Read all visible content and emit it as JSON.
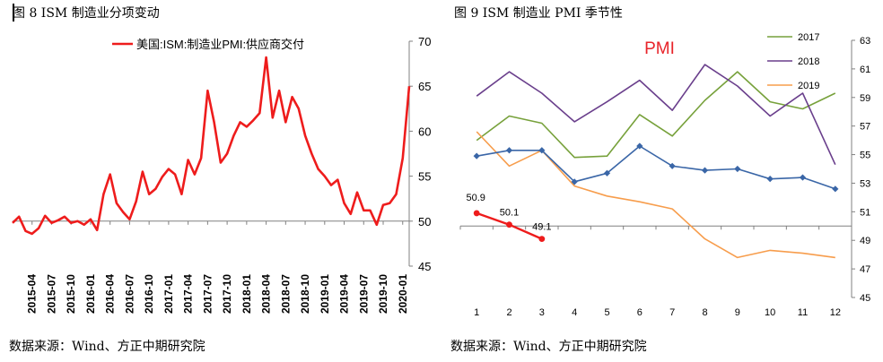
{
  "left": {
    "title": "图 8  ISM 制造业分项变动",
    "source": "数据来源：Wind、方正中期研究院"
  },
  "right": {
    "title": "图 9  ISM 制造业 PMI 季节性",
    "source": "数据来源：Wind、方正中期研究院"
  },
  "chart_data": [
    {
      "type": "line",
      "title": "",
      "legend": [
        "美国:ISM:制造业PMI:供应商交付"
      ],
      "legend_position": "top",
      "colors": [
        "#ee1c1c"
      ],
      "y_axis_side": "right",
      "ylim": [
        45,
        70
      ],
      "y_ticks": [
        45,
        50,
        55,
        60,
        65,
        70
      ],
      "x_tick_labels": [
        "2015-04",
        "2015-07",
        "2015-10",
        "2016-01",
        "2016-04",
        "2016-07",
        "2016-10",
        "2017-01",
        "2017-04",
        "2017-07",
        "2017-10",
        "2018-01",
        "2018-04",
        "2018-07",
        "2018-10",
        "2019-01",
        "2019-04",
        "2019-07",
        "2019-10",
        "2020-01"
      ],
      "grid": false,
      "series": [
        {
          "name": "美国:ISM:制造业PMI:供应商交付",
          "points": [
            [
              "2015-01",
              49.8
            ],
            [
              "2015-02",
              50.5
            ],
            [
              "2015-03",
              48.9
            ],
            [
              "2015-04",
              48.6
            ],
            [
              "2015-05",
              49.2
            ],
            [
              "2015-06",
              50.6
            ],
            [
              "2015-07",
              49.8
            ],
            [
              "2015-08",
              50.1
            ],
            [
              "2015-09",
              50.5
            ],
            [
              "2015-10",
              49.8
            ],
            [
              "2015-11",
              50.0
            ],
            [
              "2015-12",
              49.6
            ],
            [
              "2016-01",
              50.2
            ],
            [
              "2016-02",
              49.0
            ],
            [
              "2016-03",
              53.0
            ],
            [
              "2016-04",
              55.2
            ],
            [
              "2016-05",
              52.0
            ],
            [
              "2016-06",
              51.0
            ],
            [
              "2016-07",
              50.2
            ],
            [
              "2016-08",
              52.2
            ],
            [
              "2016-09",
              55.5
            ],
            [
              "2016-10",
              53.0
            ],
            [
              "2016-11",
              53.6
            ],
            [
              "2016-12",
              54.9
            ],
            [
              "2017-01",
              55.8
            ],
            [
              "2017-02",
              55.2
            ],
            [
              "2017-03",
              53.0
            ],
            [
              "2017-04",
              56.8
            ],
            [
              "2017-05",
              55.2
            ],
            [
              "2017-06",
              57.0
            ],
            [
              "2017-07",
              64.5
            ],
            [
              "2017-08",
              61.0
            ],
            [
              "2017-09",
              56.5
            ],
            [
              "2017-10",
              57.5
            ],
            [
              "2017-11",
              59.5
            ],
            [
              "2017-12",
              61.0
            ],
            [
              "2018-01",
              60.5
            ],
            [
              "2018-02",
              61.2
            ],
            [
              "2018-03",
              62.0
            ],
            [
              "2018-04",
              68.2
            ],
            [
              "2018-05",
              61.5
            ],
            [
              "2018-06",
              64.5
            ],
            [
              "2018-07",
              61.0
            ],
            [
              "2018-08",
              63.8
            ],
            [
              "2018-09",
              62.5
            ],
            [
              "2018-10",
              59.5
            ],
            [
              "2018-11",
              57.5
            ],
            [
              "2018-12",
              55.8
            ],
            [
              "2019-01",
              55.0
            ],
            [
              "2019-02",
              54.0
            ],
            [
              "2019-03",
              54.6
            ],
            [
              "2019-04",
              52.0
            ],
            [
              "2019-05",
              50.8
            ],
            [
              "2019-06",
              53.2
            ],
            [
              "2019-07",
              51.2
            ],
            [
              "2019-08",
              51.2
            ],
            [
              "2019-09",
              49.6
            ],
            [
              "2019-10",
              51.8
            ],
            [
              "2019-11",
              52.0
            ],
            [
              "2019-12",
              53.0
            ],
            [
              "2020-01",
              57.0
            ],
            [
              "2020-02",
              65.0
            ]
          ]
        }
      ]
    },
    {
      "type": "line",
      "title": "PMI",
      "title_color": "#e8242a",
      "legend_position": "top-right",
      "x": [
        1,
        2,
        3,
        4,
        5,
        6,
        7,
        8,
        9,
        10,
        11,
        12
      ],
      "ylim": [
        45,
        63
      ],
      "y_ticks": [
        45,
        47,
        49,
        51,
        53,
        55,
        57,
        59,
        61,
        63
      ],
      "y_axis_side": "right",
      "grid": false,
      "series": [
        {
          "name": "2017",
          "color": "#77a13b",
          "values": [
            56.0,
            57.7,
            57.2,
            54.8,
            54.9,
            57.8,
            56.3,
            58.8,
            60.8,
            58.7,
            58.2,
            59.3
          ],
          "in_legend": true
        },
        {
          "name": "2018",
          "color": "#6a3f8c",
          "values": [
            59.1,
            60.8,
            59.3,
            57.3,
            58.7,
            60.2,
            58.1,
            61.3,
            59.8,
            57.7,
            59.3,
            54.3
          ],
          "in_legend": true
        },
        {
          "name": "2019",
          "color": "#f79d4c",
          "values": [
            56.6,
            54.2,
            55.3,
            52.8,
            52.1,
            51.7,
            51.2,
            49.1,
            47.8,
            48.3,
            48.1,
            47.8
          ],
          "in_legend": true
        },
        {
          "name": "",
          "color": "#3a66a7",
          "values": [
            54.9,
            55.3,
            55.3,
            53.1,
            53.7,
            55.6,
            54.2,
            53.9,
            54.0,
            53.3,
            53.4,
            52.6
          ],
          "in_legend": false,
          "markers": "diamond"
        },
        {
          "name": "",
          "color": "#ee1c1c",
          "values": [
            50.9,
            50.1,
            49.1,
            null,
            null,
            null,
            null,
            null,
            null,
            null,
            null,
            null
          ],
          "in_legend": false,
          "markers": "circle",
          "labels": [
            "50.9",
            "50.1",
            "49.1"
          ]
        }
      ]
    }
  ]
}
